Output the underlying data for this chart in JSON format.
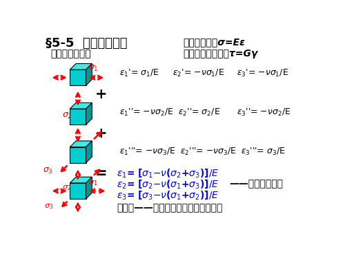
{
  "title1": "§5-5  广义胡克定律",
  "title2": "单向应力状态σ=Eε",
  "subtitle1": "三向应力状态下",
  "subtitle2": "纯剪切应力状态下τ=Gγ",
  "label_guangyi": "——广义胡克定律",
  "bottom_text": "主应变——与主应力方向一致的线应变",
  "bg_color": "#ffffff",
  "cube_face_color": "#00CED1",
  "cube_top_color": "#40E8E8",
  "cube_right_color": "#009898",
  "arrow_color": "#FF0000",
  "text_color_black": "#000000",
  "text_color_blue": "#0000FF",
  "text_color_red": "#FF0000"
}
